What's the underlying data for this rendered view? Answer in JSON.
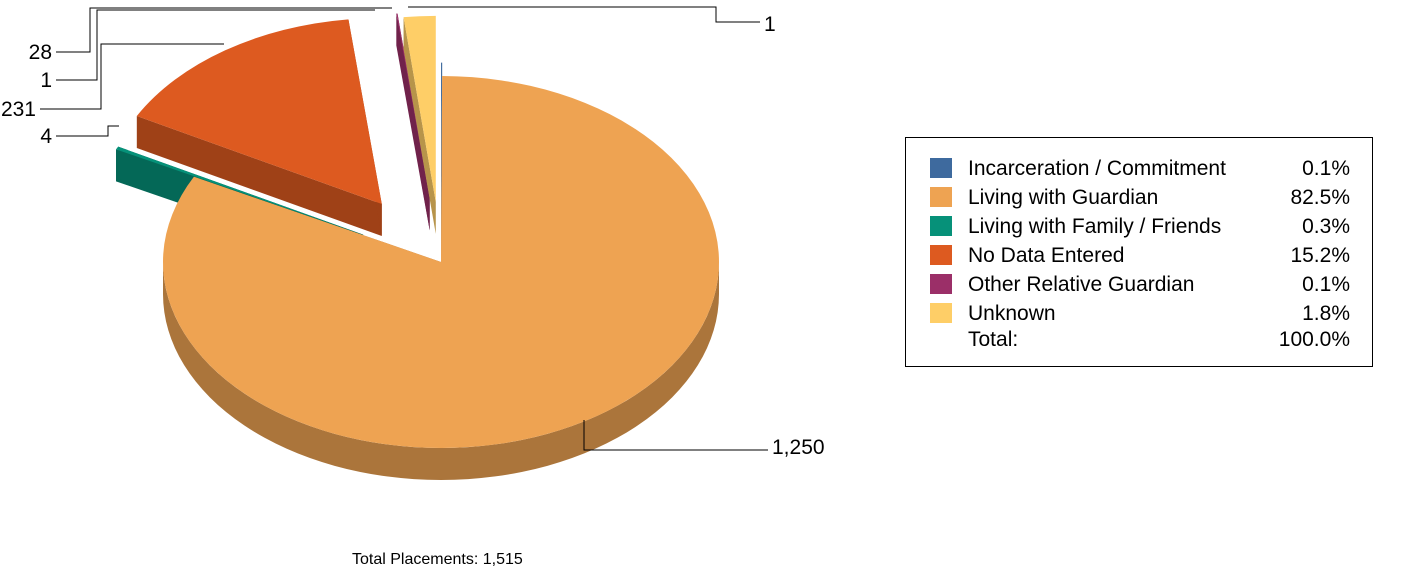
{
  "chart_data": {
    "type": "pie",
    "style": "3d-exploded",
    "slices": [
      {
        "label": "Incarceration / Commitment",
        "value": 1,
        "percent": "0.1%",
        "color": "#3E6A9E",
        "data_label": "1"
      },
      {
        "label": "Living with Guardian",
        "value": 1250,
        "percent": "82.5%",
        "color": "#EEA352",
        "data_label": "1,250"
      },
      {
        "label": "Living with Family / Friends",
        "value": 4,
        "percent": "0.3%",
        "color": "#069179",
        "data_label": "4"
      },
      {
        "label": "No Data Entered",
        "value": 231,
        "percent": "15.2%",
        "color": "#DD5A20",
        "data_label": "231"
      },
      {
        "label": "Other Relative Guardian",
        "value": 1,
        "percent": "0.1%",
        "color": "#9B2F68",
        "data_label": "1"
      },
      {
        "label": "Unknown",
        "value": 28,
        "percent": "1.8%",
        "color": "#FECE67",
        "data_label": "28"
      }
    ],
    "legend": {
      "placement": "right",
      "total_label": "Total:",
      "total_percent": "100.0%"
    },
    "footer": "Total Placements: 1,515"
  }
}
